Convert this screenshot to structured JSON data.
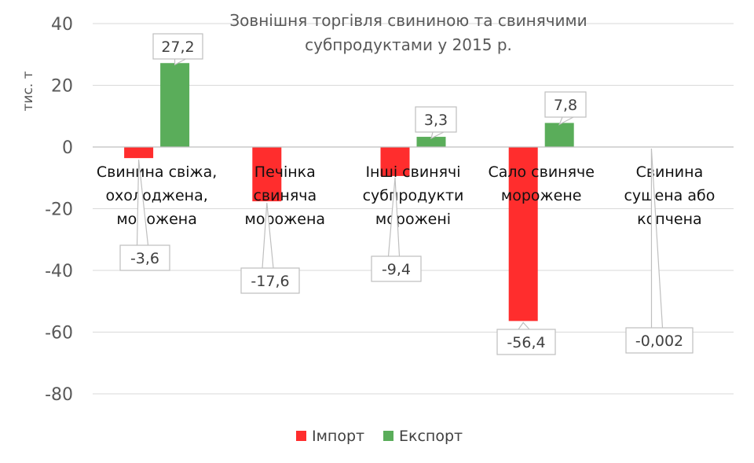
{
  "chart_data": {
    "type": "bar",
    "title_lines": [
      "Зовнішня торгівля свининою та свинячими",
      "субпродуктами у 2015 р."
    ],
    "ylabel": "тис. т",
    "xlabel": "",
    "ylim": [
      -80,
      40
    ],
    "yticks": [
      "40",
      "20",
      "0",
      "-20",
      "-40",
      "-60",
      "-80"
    ],
    "grid": true,
    "legend_position": "bottom",
    "categories": [
      [
        "Свинина свіжа,",
        "охолоджена,",
        "морожена"
      ],
      [
        "Печінка",
        "свиняча",
        "морожена"
      ],
      [
        "Інші свинячі",
        "субпродукти",
        "морожені"
      ],
      [
        "Сало свиняче",
        "морожене"
      ],
      [
        "Свинина",
        "сушена або",
        "копчена"
      ]
    ],
    "series": [
      {
        "name": "Імпорт",
        "color": "#ff2d2d",
        "values": [
          -3.6,
          -17.6,
          -9.4,
          -56.4,
          -0.002
        ],
        "labels": [
          "-3,6",
          "-17,6",
          "-9,4",
          "-56,4",
          "-0,002"
        ]
      },
      {
        "name": "Експорт",
        "color": "#5aad5a",
        "values": [
          27.2,
          0,
          3.3,
          7.8,
          0
        ],
        "labels": [
          "27,2",
          "",
          "3,3",
          "7,8",
          ""
        ]
      }
    ]
  }
}
